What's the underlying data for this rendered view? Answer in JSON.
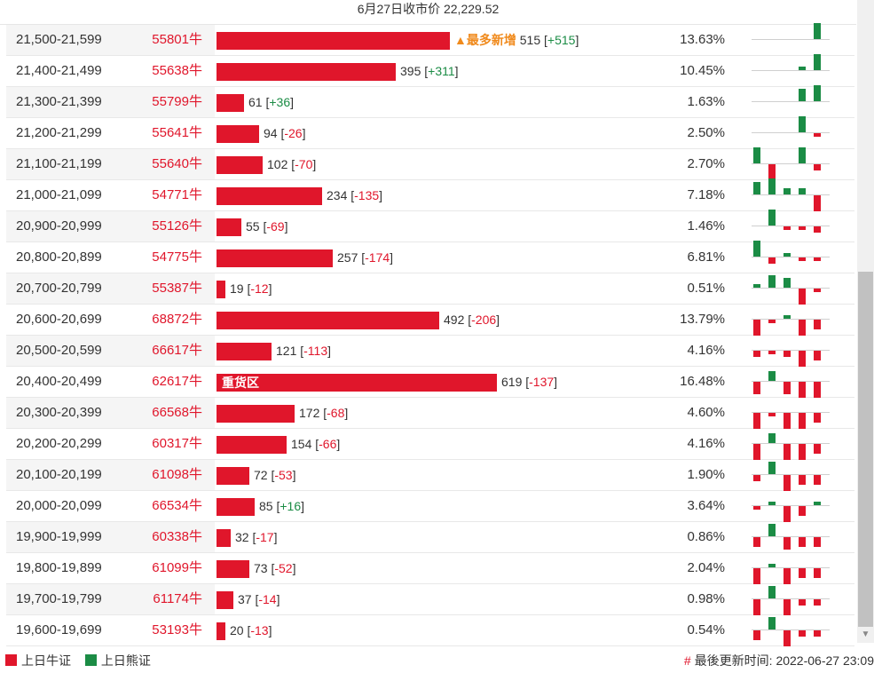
{
  "header": {
    "title": "6月27日收市价 22,229.52"
  },
  "colors": {
    "bull": "#e0162b",
    "bear": "#1b8c45",
    "note": "#f08a1c"
  },
  "rows": [
    {
      "range": "21,500-21,599",
      "code": "55801牛",
      "value": 515,
      "change": "+515",
      "pct": "13.63%",
      "note": "▲最多新增",
      "spark": [
        0,
        0,
        0,
        0,
        5
      ]
    },
    {
      "range": "21,400-21,499",
      "code": "55638牛",
      "value": 395,
      "change": "+311",
      "pct": "10.45%",
      "spark": [
        0,
        0,
        0,
        1,
        5
      ]
    },
    {
      "range": "21,300-21,399",
      "code": "55799牛",
      "value": 61,
      "change": "+36",
      "pct": "1.63%",
      "spark": [
        0,
        0,
        0,
        4,
        5
      ]
    },
    {
      "range": "21,200-21,299",
      "code": "55641牛",
      "value": 94,
      "change": "-26",
      "pct": "2.50%",
      "spark": [
        0,
        0,
        0,
        5,
        -1
      ]
    },
    {
      "range": "21,100-21,199",
      "code": "55640牛",
      "value": 102,
      "change": "-70",
      "pct": "2.70%",
      "spark": [
        5,
        -5,
        0,
        5,
        -2
      ]
    },
    {
      "range": "21,000-21,099",
      "code": "54771牛",
      "value": 234,
      "change": "-135",
      "pct": "7.18%",
      "spark": [
        4,
        5,
        2,
        2,
        -5
      ]
    },
    {
      "range": "20,900-20,999",
      "code": "55126牛",
      "value": 55,
      "change": "-69",
      "pct": "1.46%",
      "spark": [
        0,
        5,
        -1,
        -1,
        -2
      ]
    },
    {
      "range": "20,800-20,899",
      "code": "54775牛",
      "value": 257,
      "change": "-174",
      "pct": "6.81%",
      "spark": [
        5,
        -2,
        1,
        -1,
        -1
      ]
    },
    {
      "range": "20,700-20,799",
      "code": "55387牛",
      "value": 19,
      "change": "-12",
      "pct": "0.51%",
      "spark": [
        1,
        4,
        3,
        -5,
        -1
      ]
    },
    {
      "range": "20,600-20,699",
      "code": "68872牛",
      "value": 492,
      "change": "-206",
      "pct": "13.79%",
      "spark": [
        -5,
        -1,
        1,
        -5,
        -3
      ]
    },
    {
      "range": "20,500-20,599",
      "code": "66617牛",
      "value": 121,
      "change": "-113",
      "pct": "4.16%",
      "spark": [
        -2,
        -1,
        -2,
        -5,
        -3
      ]
    },
    {
      "range": "20,400-20,499",
      "code": "62617牛",
      "value": 619,
      "change": "-137",
      "pct": "16.48%",
      "tag": "重货区",
      "spark": [
        -4,
        3,
        -4,
        -5,
        -5
      ]
    },
    {
      "range": "20,300-20,399",
      "code": "66568牛",
      "value": 172,
      "change": "-68",
      "pct": "4.60%",
      "spark": [
        -5,
        -1,
        -5,
        -5,
        -3
      ]
    },
    {
      "range": "20,200-20,299",
      "code": "60317牛",
      "value": 154,
      "change": "-66",
      "pct": "4.16%",
      "spark": [
        -5,
        3,
        -5,
        -5,
        -3
      ]
    },
    {
      "range": "20,100-20,199",
      "code": "61098牛",
      "value": 72,
      "change": "-53",
      "pct": "1.90%",
      "spark": [
        -2,
        4,
        -5,
        -3,
        -3
      ]
    },
    {
      "range": "20,000-20,099",
      "code": "66534牛",
      "value": 85,
      "change": "+16",
      "pct": "3.64%",
      "spark": [
        -1,
        1,
        -5,
        -3,
        1
      ]
    },
    {
      "range": "19,900-19,999",
      "code": "60338牛",
      "value": 32,
      "change": "-17",
      "pct": "0.86%",
      "spark": [
        -3,
        4,
        -4,
        -3,
        -3
      ]
    },
    {
      "range": "19,800-19,899",
      "code": "61099牛",
      "value": 73,
      "change": "-52",
      "pct": "2.04%",
      "spark": [
        -5,
        1,
        -5,
        -3,
        -3
      ]
    },
    {
      "range": "19,700-19,799",
      "code": "61174牛",
      "value": 37,
      "change": "-14",
      "pct": "0.98%",
      "spark": [
        -5,
        4,
        -5,
        -2,
        -2
      ]
    },
    {
      "range": "19,600-19,699",
      "code": "53193牛",
      "value": 20,
      "change": "-13",
      "pct": "0.54%",
      "spark": [
        -3,
        4,
        -5,
        -2,
        -2
      ]
    }
  ],
  "legend": {
    "bull": "上日牛证",
    "bear": "上日熊证"
  },
  "footer": {
    "hash": "#",
    "updated": "最後更新时间: 2022-06-27 23:09"
  }
}
